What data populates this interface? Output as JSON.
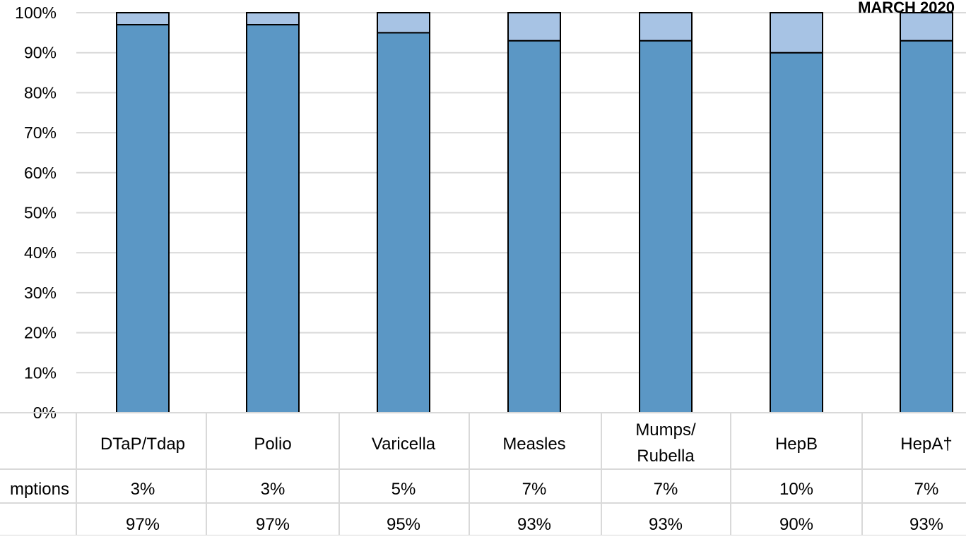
{
  "colors": {
    "vaccinated": "#5b97c5",
    "exemptions": "#a7c3e4",
    "bar_outline": "#000000",
    "gridline": "#d9d9d9",
    "table_border": "#d9d9d9",
    "text": "#000000"
  },
  "header": {
    "period_label": "MARCH 2020"
  },
  "chart_data": {
    "type": "bar",
    "stacked": true,
    "categories": [
      "DTaP/Tdap",
      "Polio",
      "Varicella",
      "Measles",
      "Mumps/ Rubella",
      "HepB",
      "HepA†"
    ],
    "series": [
      {
        "name": "",
        "values": [
          97,
          97,
          95,
          93,
          93,
          90,
          93
        ],
        "color": "#5b97c5"
      },
      {
        "name": "mptions",
        "values": [
          3,
          3,
          5,
          7,
          7,
          10,
          7
        ],
        "color": "#a7c3e4"
      }
    ],
    "ylim": [
      0,
      100
    ],
    "yticks": [
      "0%",
      "10%",
      "20%",
      "30%",
      "40%",
      "50%",
      "60%",
      "70%",
      "80%",
      "90%",
      "100%"
    ],
    "grid": true,
    "table_rows": [
      {
        "label": "mptions",
        "values": [
          "3%",
          "3%",
          "5%",
          "7%",
          "7%",
          "10%",
          "7%"
        ]
      },
      {
        "label": "",
        "values": [
          "97%",
          "97%",
          "95%",
          "93%",
          "93%",
          "90%",
          "93%"
        ]
      }
    ]
  }
}
